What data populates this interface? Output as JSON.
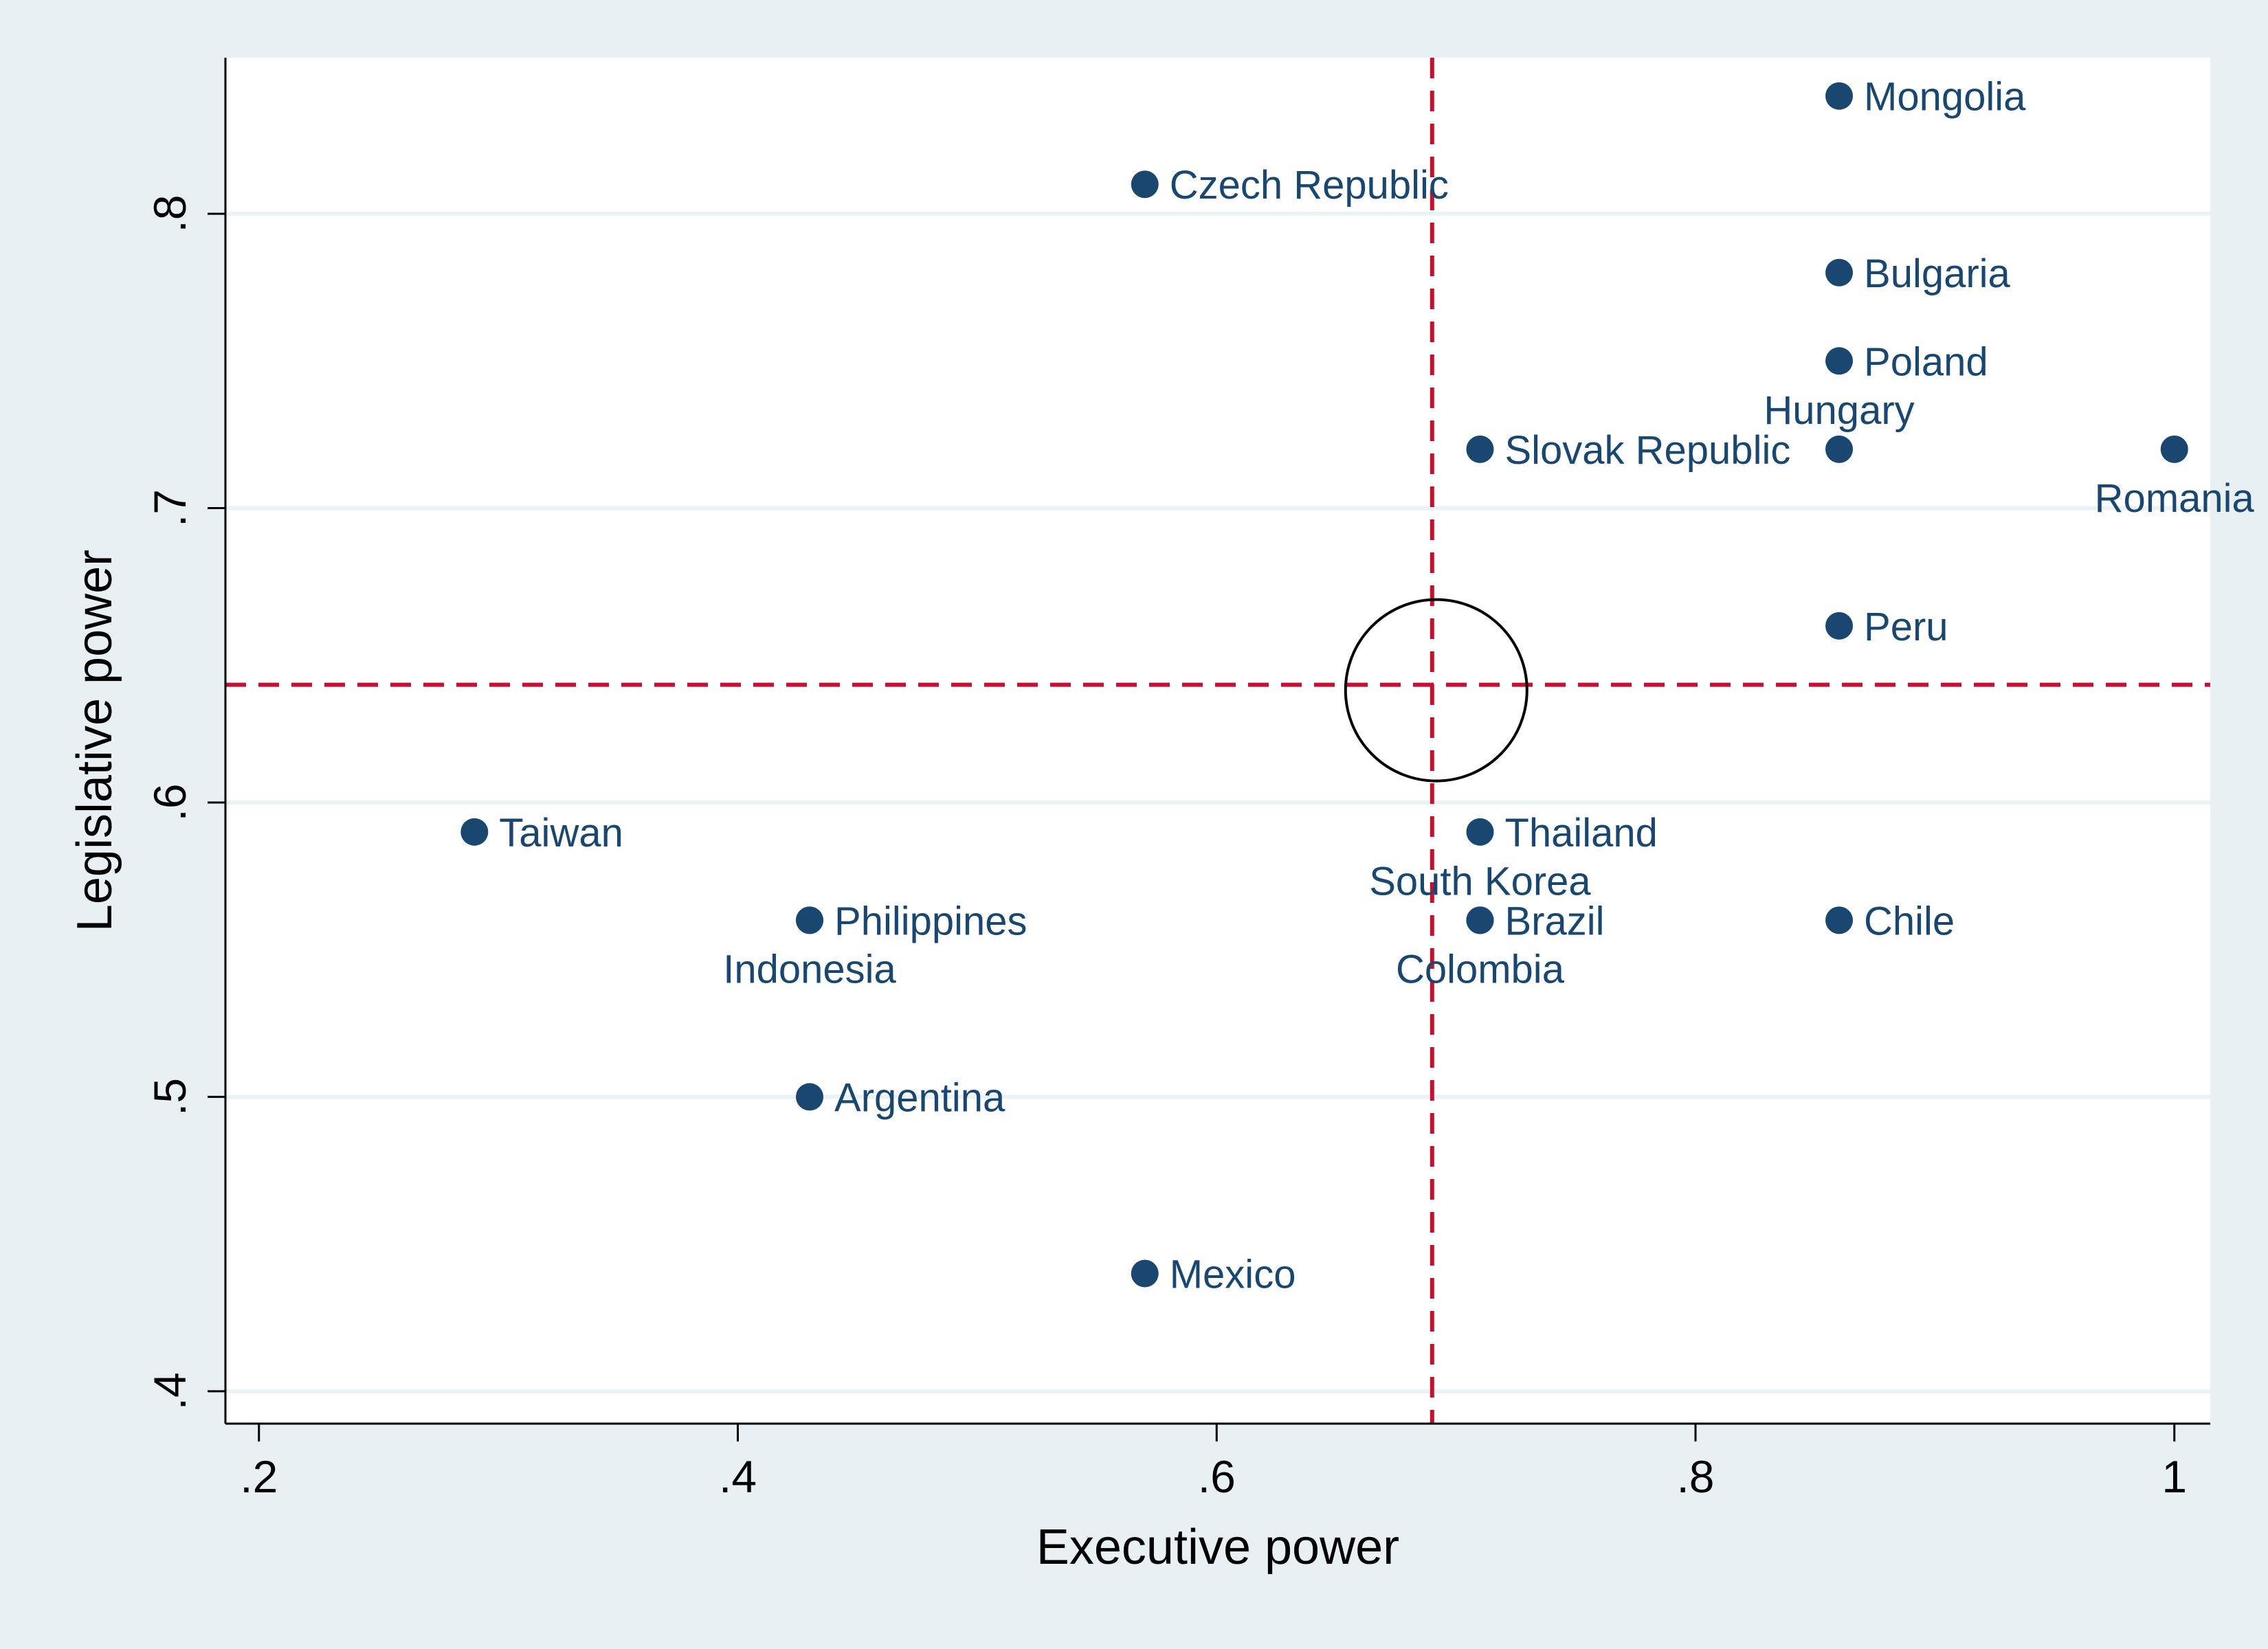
{
  "chart_data": {
    "type": "scatter",
    "title": "",
    "xlabel": "Executive power",
    "ylabel": "Legislative power",
    "xlim": [
      0.186,
      1.015
    ],
    "ylim": [
      0.389,
      0.853
    ],
    "xticks": [
      {
        "value": 0.2,
        "label": ".2"
      },
      {
        "value": 0.4,
        "label": ".4"
      },
      {
        "value": 0.6,
        "label": ".6"
      },
      {
        "value": 0.8,
        "label": ".8"
      },
      {
        "value": 1.0,
        "label": "1"
      }
    ],
    "yticks": [
      {
        "value": 0.4,
        "label": ".4"
      },
      {
        "value": 0.5,
        "label": ".5"
      },
      {
        "value": 0.6,
        "label": ".6"
      },
      {
        "value": 0.7,
        "label": ".7"
      },
      {
        "value": 0.8,
        "label": ".8"
      }
    ],
    "grid": "horizontal",
    "reference_lines": {
      "x": 0.69,
      "y": 0.64,
      "color": "#c8102e",
      "style": "dashed"
    },
    "mean_marker": {
      "x": 0.69,
      "y": 0.64,
      "shape": "hollow-circle"
    },
    "marker_color": "#1a476f",
    "points": [
      {
        "label": "Mongolia",
        "x": 0.86,
        "y": 0.84,
        "label_pos": "right"
      },
      {
        "label": "Czech Republic",
        "x": 0.57,
        "y": 0.81,
        "label_pos": "right"
      },
      {
        "label": "Bulgaria",
        "x": 0.86,
        "y": 0.78,
        "label_pos": "right"
      },
      {
        "label": "Poland",
        "x": 0.86,
        "y": 0.75,
        "label_pos": "right"
      },
      {
        "label": "Hungary",
        "x": 0.86,
        "y": 0.72,
        "label_pos": "above",
        "hidden": true
      },
      {
        "label": "Slovak Republic",
        "x": 0.71,
        "y": 0.72,
        "label_pos": "right"
      },
      {
        "label": "Romania",
        "x": 1.0,
        "y": 0.72,
        "label_pos": "below"
      },
      {
        "label": "Peru",
        "x": 0.86,
        "y": 0.66,
        "label_pos": "right"
      },
      {
        "label": "Taiwan",
        "x": 0.29,
        "y": 0.59,
        "label_pos": "right"
      },
      {
        "label": "Thailand",
        "x": 0.71,
        "y": 0.59,
        "label_pos": "right"
      },
      {
        "label": "South Korea",
        "x": 0.71,
        "y": 0.56,
        "label_pos": "above",
        "hidden": true
      },
      {
        "label": "Philippines",
        "x": 0.43,
        "y": 0.56,
        "label_pos": "right"
      },
      {
        "label": "Indonesia",
        "x": 0.43,
        "y": 0.56,
        "label_pos": "below",
        "hidden": true
      },
      {
        "label": "Brazil",
        "x": 0.71,
        "y": 0.56,
        "label_pos": "right"
      },
      {
        "label": "Colombia",
        "x": 0.71,
        "y": 0.56,
        "label_pos": "below",
        "hidden": true
      },
      {
        "label": "Chile",
        "x": 0.86,
        "y": 0.56,
        "label_pos": "right"
      },
      {
        "label": "Argentina",
        "x": 0.43,
        "y": 0.5,
        "label_pos": "right"
      },
      {
        "label": "Mexico",
        "x": 0.57,
        "y": 0.44,
        "label_pos": "right"
      }
    ]
  }
}
